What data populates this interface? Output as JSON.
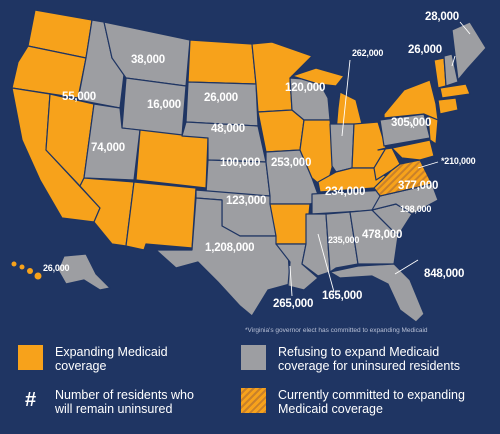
{
  "colors": {
    "background": "#1f3563",
    "expanding": "#f7a21b",
    "refusing": "#9d9ea2",
    "committed_hatch": "#c9812a"
  },
  "labels": {
    "mt": "38,000",
    "id": "55,000",
    "wy": "16,000",
    "sd": "26,000",
    "ne": "48,000",
    "ut": "74,000",
    "ks": "100,000",
    "mo": "253,000",
    "ok": "123,000",
    "tx": "1,208,000",
    "la": "265,000",
    "ms": "165,000",
    "al": "235,000",
    "ga": "478,000",
    "sc": "198,000",
    "nc": "377,000",
    "tn": "234,000",
    "wi": "120,000",
    "in": "262,000",
    "pa": "305,000",
    "va": "*210,000",
    "me": "28,000",
    "nh": "26,000",
    "fl": "848,000",
    "ak": "26,000"
  },
  "footnote": "*Virginia's governor elect has committed to expanding Medicaid",
  "legend": {
    "expanding": [
      "Expanding Medicaid",
      "coverage"
    ],
    "refusing": [
      "Refusing to expand Medicaid",
      "coverage for uninsured residents"
    ],
    "number_symbol": "#",
    "number": [
      "Number of residents who",
      "will remain uninsured"
    ],
    "committed": [
      "Currently committed to expanding",
      "Medicaid coverage"
    ]
  }
}
